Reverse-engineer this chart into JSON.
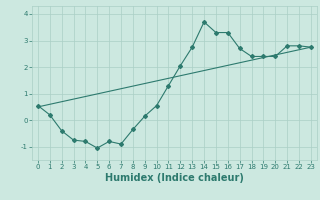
{
  "xlabel": "Humidex (Indice chaleur)",
  "bg_color": "#cce8e0",
  "line_color": "#2d7a6e",
  "grid_color": "#aacfc6",
  "curve1_x": [
    0,
    1,
    2,
    3,
    4,
    5,
    6,
    7,
    8,
    9,
    10,
    11,
    12,
    13,
    14,
    15,
    16,
    17,
    18,
    19,
    20,
    21,
    22,
    23
  ],
  "curve1_y": [
    0.55,
    0.2,
    -0.4,
    -0.75,
    -0.8,
    -1.05,
    -0.8,
    -0.9,
    -0.35,
    0.15,
    0.55,
    1.3,
    2.05,
    2.75,
    3.7,
    3.3,
    3.3,
    2.7,
    2.4,
    2.4,
    2.4,
    2.8,
    2.8,
    2.75
  ],
  "curve2_x": [
    0,
    23
  ],
  "curve2_y": [
    0.5,
    2.75
  ],
  "xlim": [
    -0.5,
    23.5
  ],
  "ylim": [
    -1.5,
    4.3
  ],
  "yticks": [
    -1,
    0,
    1,
    2,
    3,
    4
  ],
  "xticks": [
    0,
    1,
    2,
    3,
    4,
    5,
    6,
    7,
    8,
    9,
    10,
    11,
    12,
    13,
    14,
    15,
    16,
    17,
    18,
    19,
    20,
    21,
    22,
    23
  ],
  "tick_fontsize": 5,
  "xlabel_fontsize": 7
}
